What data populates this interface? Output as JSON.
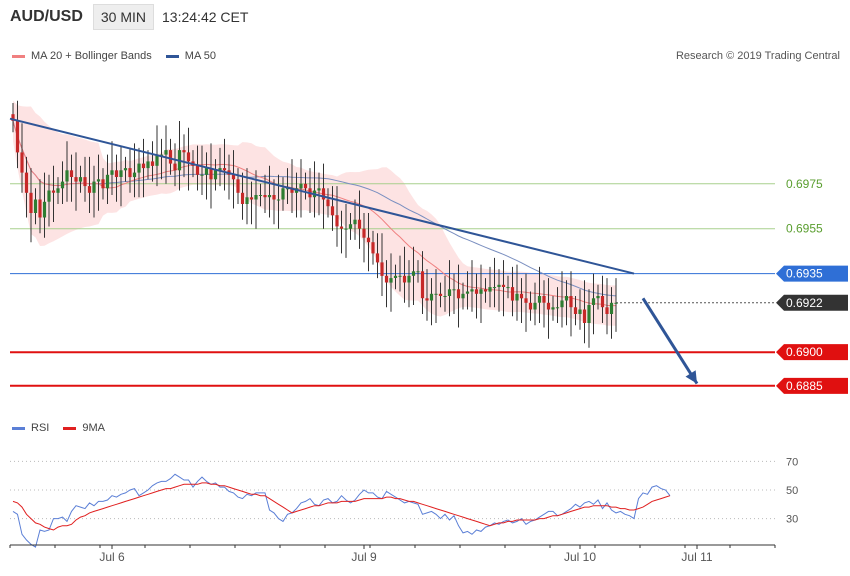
{
  "header": {
    "symbol": "AUD/USD",
    "timeframe": "30 MIN",
    "time": "13:24:42 CET"
  },
  "legend": {
    "ma20": "MA 20 + Bollinger Bands",
    "ma50": "MA 50",
    "ma20_color": "#f08080",
    "ma50_color": "#2f5597"
  },
  "copyright": "Research © 2019 Trading Central",
  "rsi_legend": {
    "rsi": "RSI",
    "ma9": "9MA",
    "rsi_color": "#5b7fd6",
    "ma9_color": "#e02020"
  },
  "chart_data": [
    {
      "type": "candlestick",
      "name": "AUD/USD 30 MIN price",
      "ylim": [
        0.6872,
        0.7011
      ],
      "x_labels": [
        "Jul 6",
        "Jul 9",
        "Jul 10",
        "Jul 11"
      ],
      "levels": [
        {
          "label": "0.6975",
          "value": 0.6975,
          "style": "green-line"
        },
        {
          "label": "0.6955",
          "value": 0.6955,
          "style": "green-line"
        },
        {
          "label": "0.6935",
          "value": 0.6935,
          "style": "blue-tag"
        },
        {
          "label": "0.6922",
          "value": 0.6922,
          "style": "current-price"
        },
        {
          "label": "0.6900",
          "value": 0.69,
          "style": "red-tag"
        },
        {
          "label": "0.6885",
          "value": 0.6885,
          "style": "red-tag"
        }
      ],
      "trendline": {
        "from": [
          0,
          0.7004
        ],
        "to": [
          138,
          0.6935
        ]
      },
      "projection_arrow": {
        "from": [
          140,
          0.6924
        ],
        "to": [
          152,
          0.6886
        ]
      },
      "close": [
        0.7003,
        0.6989,
        0.698,
        0.6971,
        0.6962,
        0.6968,
        0.696,
        0.6967,
        0.6972,
        0.6971,
        0.6973,
        0.6976,
        0.6981,
        0.6978,
        0.6976,
        0.6978,
        0.6974,
        0.6971,
        0.6976,
        0.6977,
        0.6973,
        0.6979,
        0.6981,
        0.6978,
        0.6981,
        0.6982,
        0.6978,
        0.698,
        0.6984,
        0.6982,
        0.6985,
        0.6983,
        0.6988,
        0.6988,
        0.699,
        0.6984,
        0.6981,
        0.699,
        0.6989,
        0.6985,
        0.6983,
        0.6979,
        0.6979,
        0.6982,
        0.6977,
        0.6981,
        0.6982,
        0.6981,
        0.6979,
        0.6977,
        0.6971,
        0.6966,
        0.6969,
        0.6968,
        0.697,
        0.697,
        0.6969,
        0.697,
        0.6968,
        0.6968,
        0.6973,
        0.6973,
        0.6971,
        0.6973,
        0.6975,
        0.6973,
        0.6969,
        0.6972,
        0.6973,
        0.6968,
        0.6965,
        0.6961,
        0.6956,
        0.6955,
        0.6955,
        0.6957,
        0.6959,
        0.6955,
        0.6951,
        0.6949,
        0.6944,
        0.694,
        0.6934,
        0.6931,
        0.6933,
        0.6934,
        0.6934,
        0.6931,
        0.6934,
        0.6936,
        0.6936,
        0.6924,
        0.6923,
        0.6926,
        0.6926,
        0.6925,
        0.6925,
        0.6928,
        0.6928,
        0.6924,
        0.6926,
        0.6927,
        0.6928,
        0.6926,
        0.6928,
        0.6927,
        0.6929,
        0.6929,
        0.693,
        0.6929,
        0.6929,
        0.6923,
        0.6926,
        0.6924,
        0.6922,
        0.6919,
        0.6922,
        0.6925,
        0.6922,
        0.6919,
        0.692,
        0.692,
        0.6923,
        0.6925,
        0.692,
        0.6917,
        0.6919,
        0.6913,
        0.6921,
        0.6924,
        0.6925,
        0.692,
        0.6917,
        0.6922,
        0.6922
      ]
    },
    {
      "type": "line",
      "name": "RSI panel",
      "ylim": [
        15,
        85
      ],
      "y_ticks": [
        70,
        50,
        30
      ],
      "series": [
        {
          "name": "RSI",
          "values": [
            35,
            33,
            19,
            15,
            12,
            10,
            22,
            21,
            22,
            30,
            30,
            31,
            28,
            35,
            39,
            38,
            37,
            41,
            39,
            42,
            42,
            43,
            46,
            45,
            47,
            48,
            50,
            51,
            46,
            48,
            50,
            53,
            55,
            56,
            56,
            58,
            61,
            59,
            57,
            57,
            52,
            56,
            59,
            56,
            54,
            55,
            52,
            52,
            49,
            48,
            45,
            44,
            47,
            46,
            48,
            48,
            48,
            36,
            34,
            30,
            28,
            33,
            34,
            37,
            41,
            42,
            44,
            40,
            39,
            43,
            44,
            41,
            42,
            46,
            43,
            41,
            43,
            47,
            50,
            48,
            48,
            45,
            44,
            49,
            47,
            45,
            43,
            41,
            42,
            41,
            40,
            33,
            34,
            35,
            33,
            30,
            33,
            29,
            32,
            25,
            20,
            21,
            19,
            22,
            21,
            24,
            25,
            27,
            26,
            28,
            29,
            27,
            28,
            30,
            26,
            28,
            29,
            31,
            33,
            35,
            35,
            32,
            33,
            35,
            37,
            40,
            38,
            41,
            42,
            40,
            43,
            37,
            41,
            36,
            34,
            35,
            33,
            32,
            30,
            44,
            48,
            47,
            52,
            53,
            51,
            50,
            46
          ]
        },
        {
          "name": "9MA",
          "values": [
            42,
            41,
            38,
            33,
            30,
            27,
            26,
            24,
            23,
            22,
            24,
            25,
            25,
            26,
            29,
            31,
            32,
            34,
            35,
            36,
            37,
            38,
            39,
            40,
            41,
            42,
            43,
            44,
            45,
            46,
            47,
            48,
            49,
            50,
            51,
            51,
            52,
            53,
            54,
            54,
            54,
            54,
            55,
            55,
            54,
            54,
            53,
            53,
            52,
            51,
            50,
            49,
            48,
            47,
            47,
            46,
            46,
            44,
            42,
            40,
            38,
            36,
            34,
            35,
            36,
            37,
            38,
            39,
            39,
            40,
            41,
            41,
            41,
            42,
            42,
            42,
            42,
            43,
            44,
            44,
            44,
            44,
            44,
            45,
            45,
            44,
            44,
            43,
            42,
            42,
            41,
            40,
            39,
            38,
            37,
            36,
            35,
            34,
            33,
            32,
            31,
            30,
            29,
            28,
            27,
            26,
            25,
            26,
            27,
            27,
            28,
            28,
            29,
            29,
            29,
            29,
            29,
            30,
            30,
            31,
            32,
            32,
            33,
            34,
            35,
            36,
            37,
            38,
            38,
            39,
            39,
            39,
            39,
            38,
            38,
            37,
            37,
            36,
            36,
            37,
            38,
            40,
            42,
            43,
            44,
            45,
            46
          ]
        }
      ]
    }
  ]
}
